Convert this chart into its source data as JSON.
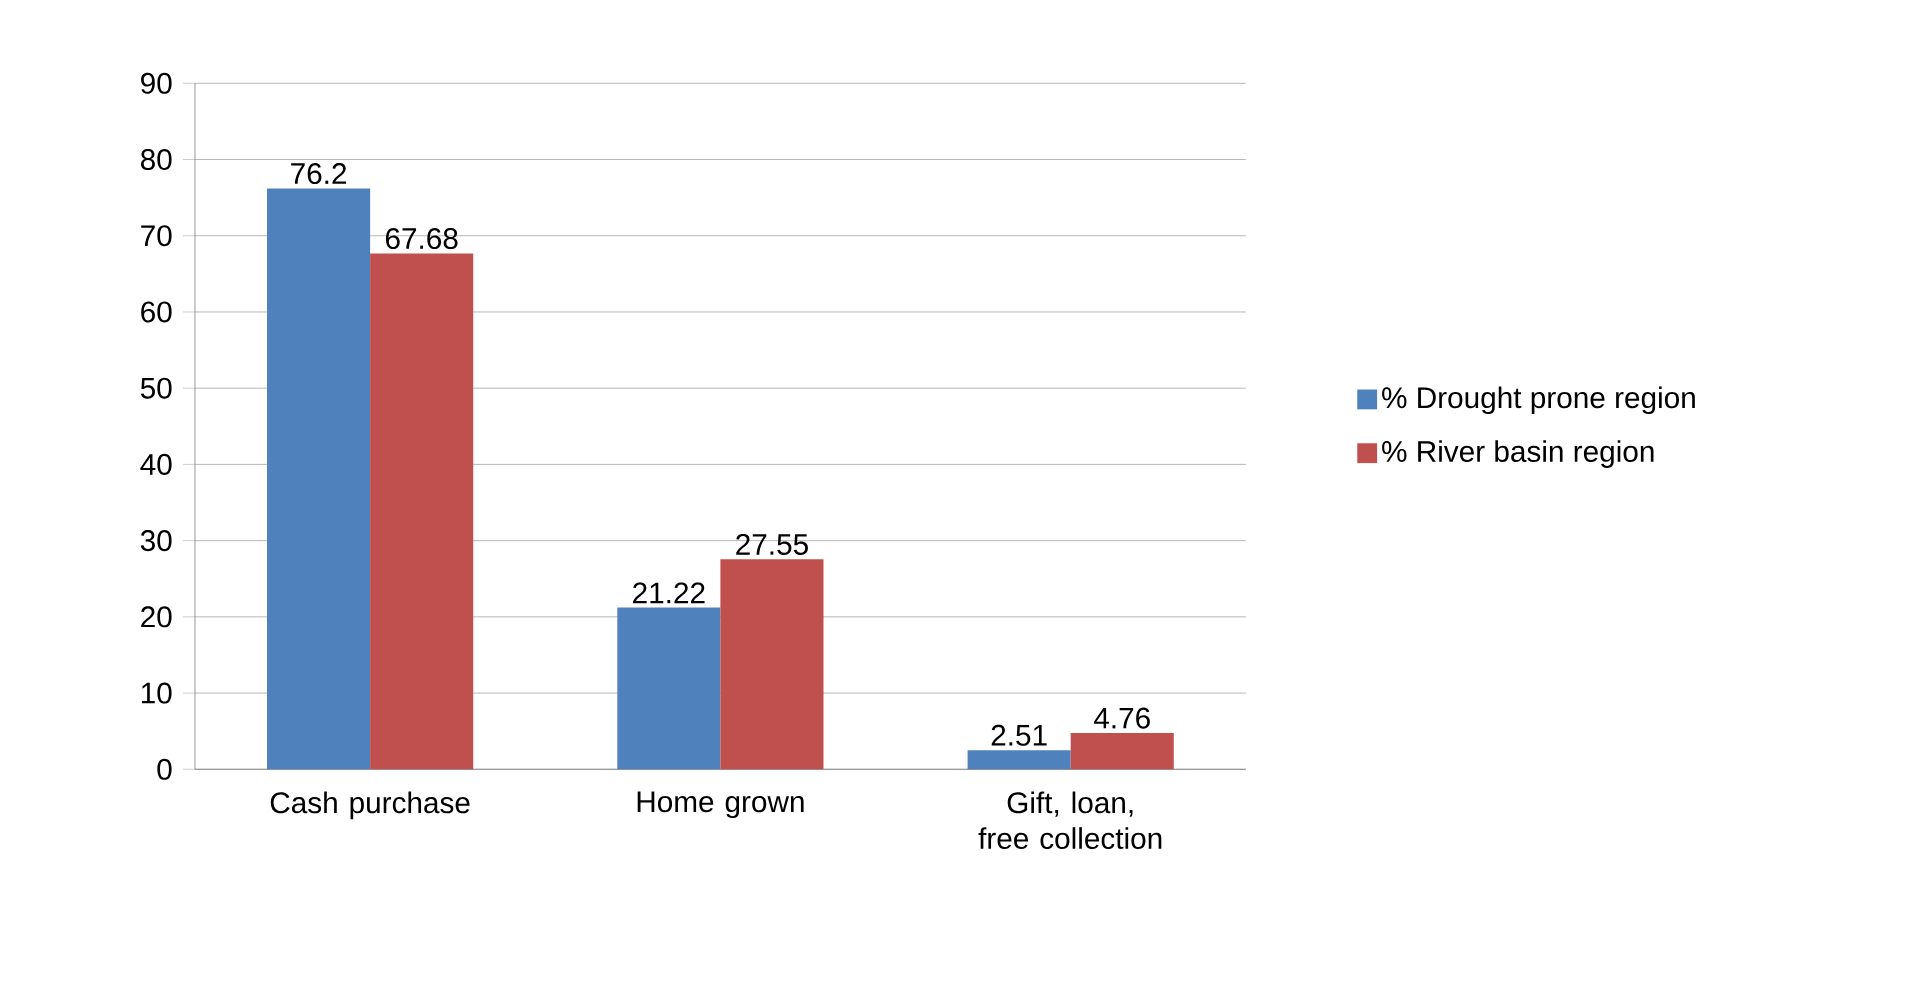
{
  "chart_data": {
    "type": "bar",
    "categories": [
      "Cash purchase",
      "Home grown",
      "Gift, loan, free collection"
    ],
    "series": [
      {
        "name": "% Drought prone region",
        "color": "#4f81bd",
        "values": [
          76.2,
          21.22,
          2.51
        ]
      },
      {
        "name": "% River basin region",
        "color": "#c0504d",
        "values": [
          67.68,
          27.55,
          4.76
        ]
      }
    ],
    "ylim": [
      0,
      90
    ],
    "yticks": [
      0,
      10,
      20,
      30,
      40,
      50,
      60,
      70,
      80,
      90
    ],
    "grid": "y",
    "legend": "right",
    "data_labels": true
  }
}
